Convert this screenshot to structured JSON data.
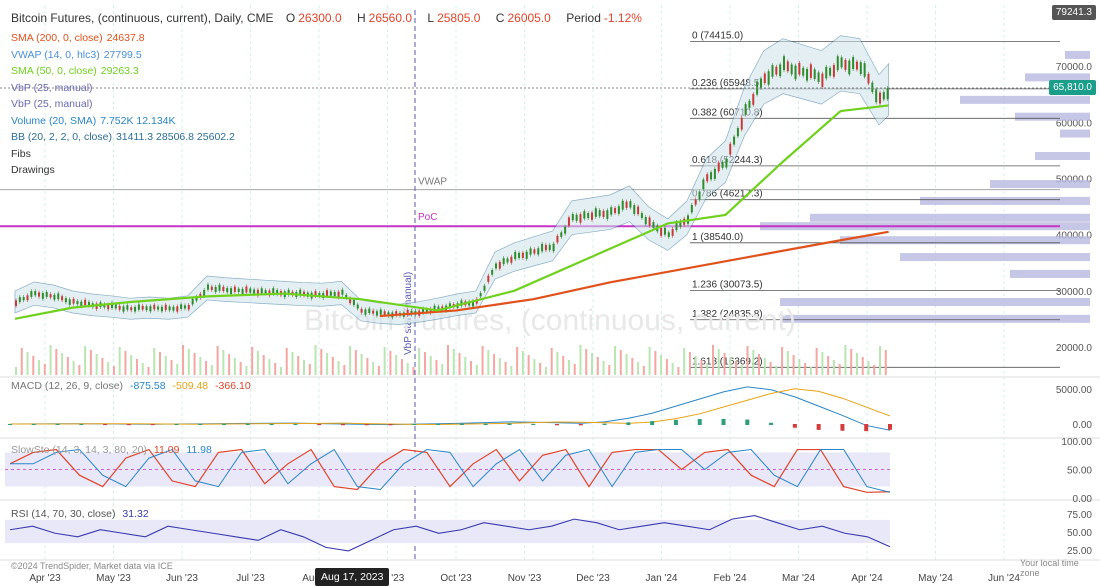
{
  "header": {
    "title": "Bitcoin Futures, (continuous, current), Daily, CME",
    "open_label": "O",
    "open": "26300.0",
    "high_label": "H",
    "high": "26560.0",
    "low_label": "L",
    "low": "25805.0",
    "close_label": "C",
    "close": "26005.0",
    "period_label": "Period",
    "period": "-1.12%"
  },
  "indicators": [
    {
      "label": "SMA (200, 0, close)",
      "value": "24637.8",
      "color": "#e0521b"
    },
    {
      "label": "VWAP (14, 0, hlc3)",
      "value": "27799.5",
      "color": "#4a90d9"
    },
    {
      "label": "SMA (50, 0, close)",
      "value": "29263.3",
      "color": "#6fd11e"
    },
    {
      "label": "VbP (25, manual)",
      "value": "",
      "color": "#6a6ab0"
    },
    {
      "label": "VbP (25, manual)",
      "value": "",
      "color": "#6a6ab0"
    },
    {
      "label": "Volume (20, SMA)",
      "value": "7.752K 12.134K",
      "color": "#2a86c7"
    },
    {
      "label": "BB (20, 2, 2, 0, close)",
      "value": "31411.3 28506.8 25602.2",
      "color": "#2b6e99"
    },
    {
      "label": "Fibs",
      "value": "",
      "color": "#333333"
    },
    {
      "label": "Drawings",
      "value": "",
      "color": "#333333"
    }
  ],
  "macd_legend": {
    "label": "MACD (12, 26, 9, close)",
    "v1": "-875.58",
    "v2": "-509.48",
    "v3": "-366.10"
  },
  "stoch_legend": {
    "label": "SlowSto (14, 3, 14, 3, 80, 20)",
    "v1": "11.09",
    "v2": "11.98"
  },
  "rsi_legend": {
    "label": "RSI (14, 70, 30, close)",
    "v1": "31.32"
  },
  "price_boxes": {
    "top": "79241.3",
    "current": "65,810.0"
  },
  "date_box": "Aug 17, 2023",
  "watermark": "Bitcoin Futures, (continuous, current)",
  "copyright": "©2024 TrendSpider, Market data via ICE",
  "local_time": "Your local time zone",
  "annotations": {
    "vwap": "VWAP",
    "poc": "PoC",
    "vbp_start": "VbP start (manual)"
  },
  "chart_data": {
    "type": "line",
    "x_ticks": [
      "Apr '23",
      "May '23",
      "Jun '23",
      "Jul '23",
      "Aug '23",
      "Sep '23",
      "Oct '23",
      "Nov '23",
      "Dec '23",
      "Jan '24",
      "Feb '24",
      "Mar '24",
      "Apr '24",
      "May '24",
      "Jun '24"
    ],
    "y_ticks_price": [
      "70000.0",
      "60000.0",
      "50000.0",
      "40000.0",
      "30000.0",
      "20000.0"
    ],
    "y_ticks_macd": [
      "5000.00",
      "0.00"
    ],
    "y_ticks_stoch": [
      "100.00",
      "50.00",
      "0.00"
    ],
    "y_ticks_rsi": [
      "75.00",
      "50.00",
      "25.00"
    ],
    "ylim_price": [
      15000,
      80000
    ],
    "fib_levels": [
      {
        "label": "0 (74415.0)",
        "value": 74415
      },
      {
        "label": "0.236 (65948.5)",
        "value": 65948.5
      },
      {
        "label": "0.382 (60710.8)",
        "value": 60710.8
      },
      {
        "label": "0.618 (52244.3)",
        "value": 52244.3
      },
      {
        "label": "0.786 (46217.3)",
        "value": 46217.3
      },
      {
        "label": "1 (38540.0)",
        "value": 38540
      },
      {
        "label": "1.236 (30073.5)",
        "value": 30073.5
      },
      {
        "label": "1.382 (24835.8)",
        "value": 24835.8
      },
      {
        "label": "1.618 (16369.2)",
        "value": 16369.2
      }
    ],
    "poc_value": 41500,
    "vwap_value": 48000,
    "series": [
      {
        "name": "price",
        "color": "#333333",
        "values": [
          [
            0,
            28000
          ],
          [
            10,
            29500
          ],
          [
            20,
            29000
          ],
          [
            30,
            28000
          ],
          [
            40,
            27500
          ],
          [
            50,
            27200
          ],
          [
            60,
            26800
          ],
          [
            70,
            27000
          ],
          [
            80,
            26800
          ],
          [
            90,
            27200
          ],
          [
            100,
            30500
          ],
          [
            110,
            30200
          ],
          [
            120,
            30000
          ],
          [
            130,
            29800
          ],
          [
            140,
            29600
          ],
          [
            150,
            29400
          ],
          [
            160,
            29300
          ],
          [
            170,
            29600
          ],
          [
            180,
            26500
          ],
          [
            190,
            26000
          ],
          [
            200,
            25800
          ],
          [
            210,
            26200
          ],
          [
            220,
            26800
          ],
          [
            230,
            27500
          ],
          [
            240,
            28000
          ],
          [
            250,
            34500
          ],
          [
            260,
            36000
          ],
          [
            270,
            37000
          ],
          [
            280,
            38000
          ],
          [
            290,
            43000
          ],
          [
            300,
            43500
          ],
          [
            310,
            44000
          ],
          [
            320,
            45500
          ],
          [
            330,
            42000
          ],
          [
            340,
            40000
          ],
          [
            350,
            43000
          ],
          [
            360,
            50000
          ],
          [
            370,
            53000
          ],
          [
            380,
            62000
          ],
          [
            390,
            68000
          ],
          [
            400,
            70000
          ],
          [
            410,
            69000
          ],
          [
            420,
            68000
          ],
          [
            430,
            70500
          ],
          [
            440,
            70000
          ],
          [
            450,
            64000
          ],
          [
            455,
            65810
          ]
        ]
      },
      {
        "name": "SMA 200",
        "color": "#e0521b",
        "values": [
          [
            190,
            25500
          ],
          [
            230,
            26500
          ],
          [
            270,
            28500
          ],
          [
            310,
            31500
          ],
          [
            350,
            34000
          ],
          [
            390,
            36500
          ],
          [
            430,
            39000
          ],
          [
            455,
            40500
          ]
        ]
      },
      {
        "name": "SMA 50",
        "color": "#6fd11e",
        "values": [
          [
            0,
            25000
          ],
          [
            30,
            27000
          ],
          [
            60,
            28000
          ],
          [
            100,
            29000
          ],
          [
            140,
            29500
          ],
          [
            180,
            28500
          ],
          [
            220,
            26500
          ],
          [
            260,
            30000
          ],
          [
            300,
            36000
          ],
          [
            340,
            42000
          ],
          [
            370,
            43500
          ],
          [
            400,
            53000
          ],
          [
            430,
            62000
          ],
          [
            455,
            63000
          ]
        ]
      }
    ],
    "macd": {
      "values": [
        0,
        20,
        40,
        30,
        10,
        -20,
        -30,
        0,
        20,
        50,
        80,
        100,
        120,
        60,
        0,
        -50,
        -80,
        -20,
        30,
        100,
        200,
        300,
        250,
        180,
        100,
        300,
        800,
        1500,
        2500,
        3500,
        4500,
        5200,
        4800,
        3800,
        2500,
        1200,
        -200,
        -875
      ]
    },
    "stoch": {
      "values": [
        60,
        80,
        85,
        40,
        20,
        70,
        85,
        30,
        20,
        80,
        85,
        25,
        60,
        85,
        20,
        15,
        60,
        85,
        80,
        20,
        60,
        85,
        30,
        75,
        85,
        20,
        80,
        85,
        85,
        50,
        80,
        85,
        40,
        20,
        85,
        85,
        20,
        10,
        11
      ]
    },
    "rsi": {
      "values": [
        55,
        60,
        50,
        45,
        55,
        50,
        45,
        60,
        55,
        50,
        45,
        40,
        55,
        45,
        30,
        25,
        40,
        55,
        60,
        50,
        55,
        65,
        60,
        55,
        60,
        70,
        65,
        55,
        60,
        65,
        60,
        55,
        70,
        75,
        65,
        55,
        60,
        50,
        45,
        31
      ]
    }
  }
}
